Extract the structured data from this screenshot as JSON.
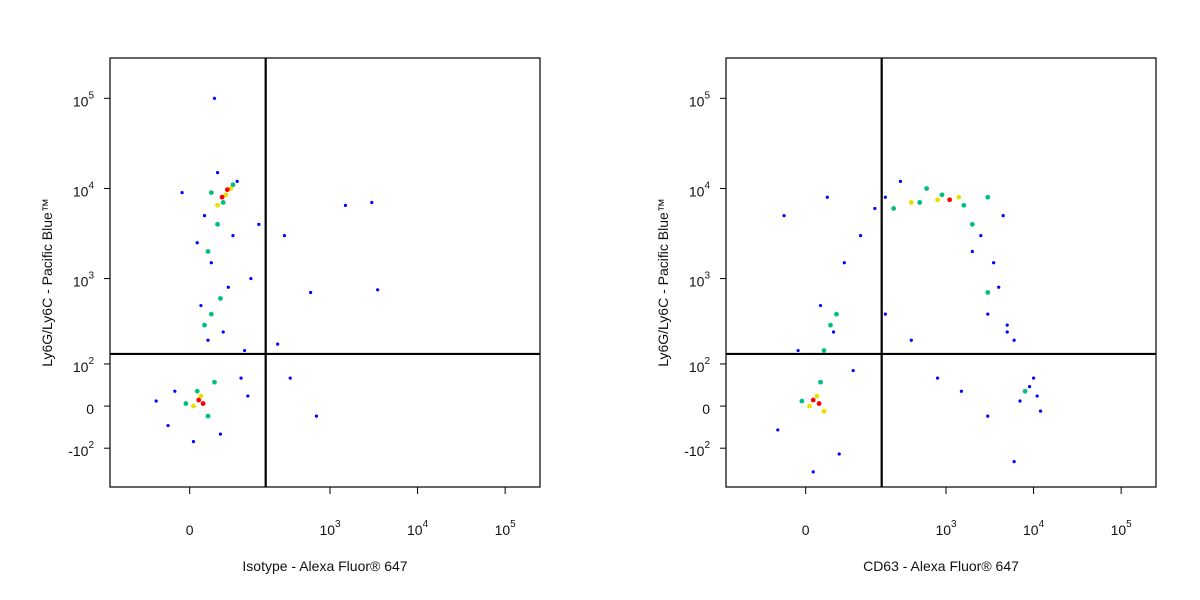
{
  "chart_data": [
    {
      "type": "scatter",
      "x_label": "Isotype - Alexa Fluor® 647",
      "y_label": "Ly6G/Ly6C - Pacific Blue™",
      "xlim": [
        -200,
        250000
      ],
      "ylim": [
        -300,
        280000
      ],
      "scale": "biexponential",
      "xticks": [
        0,
        {
          "value": 1000,
          "label": "10^3"
        },
        {
          "value": 10000,
          "label": "10^4"
        },
        {
          "value": 100000,
          "label": "10^5"
        }
      ],
      "yticks": [
        {
          "value": -100,
          "label": "-10^2"
        },
        0,
        {
          "value": 100,
          "label": "10^2"
        },
        {
          "value": 1000,
          "label": "10^3"
        },
        {
          "value": 10000,
          "label": "10^4"
        },
        {
          "value": 100000,
          "label": "10^5"
        }
      ],
      "gates": {
        "x": 181,
        "y": 136
      },
      "series": [
        {
          "color": "#0000ff",
          "x": [
            40,
            80,
            20,
            70,
            30,
            60,
            15,
            50,
            25,
            -20,
            -30,
            45,
            5,
            90,
            110,
            -50,
            35,
            300,
            600,
            250,
            1500,
            3000,
            3500,
            350,
            700,
            150,
            120,
            10,
            -10,
            100
          ],
          "values": [
            15000,
            12000,
            5000,
            3000,
            1500,
            800,
            500,
            250,
            200,
            30,
            -40,
            -60,
            -80,
            60,
            20,
            10,
            100000,
            3000,
            700,
            180,
            6500,
            7000,
            750,
            60,
            -20,
            4000,
            1000,
            2500,
            9000,
            150
          ]
        },
        {
          "color": "#00c080",
          "x": [
            50,
            30,
            70,
            40,
            25,
            45,
            30,
            20,
            10,
            25,
            -5,
            35
          ],
          "values": [
            7000,
            9000,
            11000,
            4000,
            2000,
            600,
            400,
            300,
            30,
            -20,
            5,
            50
          ]
        },
        {
          "color": "#e8e000",
          "x": [
            55,
            40,
            65,
            15,
            5
          ],
          "values": [
            8500,
            6500,
            10000,
            20,
            0
          ]
        },
        {
          "color": "#ff0000",
          "x": [
            58,
            48,
            12,
            18
          ],
          "values": [
            9700,
            8000,
            12,
            5
          ]
        }
      ]
    },
    {
      "type": "scatter",
      "x_label": "CD63 - Alexa Fluor® 647",
      "y_label": "Ly6G/Ly6C - Pacific Blue™",
      "xlim": [
        -200,
        250000
      ],
      "ylim": [
        -300,
        280000
      ],
      "scale": "biexponential",
      "xticks": [
        0,
        {
          "value": 1000,
          "label": "10^3"
        },
        {
          "value": 10000,
          "label": "10^4"
        },
        {
          "value": 100000,
          "label": "10^5"
        }
      ],
      "yticks": [
        {
          "value": -100,
          "label": "-10^2"
        },
        0,
        {
          "value": 100,
          "label": "10^2"
        },
        {
          "value": 1000,
          "label": "10^3"
        },
        {
          "value": 10000,
          "label": "10^4"
        },
        {
          "value": 100000,
          "label": "10^5"
        }
      ],
      "gates": {
        "x": 181,
        "y": 136
      },
      "series": [
        {
          "color": "#0000ff",
          "x": [
            -30,
            30,
            150,
            100,
            60,
            20,
            40,
            -10,
            80,
            -40,
            50,
            10,
            200,
            400,
            800,
            3000,
            6000,
            1500,
            2500,
            3500,
            4000,
            3000,
            5000,
            2000,
            6000,
            9000,
            11000,
            7000,
            10000,
            4500,
            300,
            200,
            5000,
            12000
          ],
          "values": [
            5000,
            8000,
            6000,
            3000,
            1500,
            500,
            250,
            150,
            80,
            -50,
            -120,
            -200,
            400,
            200,
            60,
            -20,
            -150,
            30,
            3000,
            1500,
            800,
            400,
            250,
            2000,
            200,
            40,
            20,
            10,
            60,
            5000,
            12000,
            8000,
            300,
            -10
          ]
        },
        {
          "color": "#00c080",
          "x": [
            250,
            500,
            900,
            1600,
            3000,
            600,
            35,
            25,
            45,
            20,
            -5,
            2000,
            8000,
            3000
          ],
          "values": [
            6000,
            7000,
            8500,
            6500,
            8000,
            10000,
            300,
            150,
            400,
            50,
            10,
            4000,
            30,
            700
          ]
        },
        {
          "color": "#e8e000",
          "x": [
            800,
            1400,
            400,
            15,
            5,
            25
          ],
          "values": [
            7500,
            8000,
            7000,
            20,
            0,
            -10
          ]
        },
        {
          "color": "#ff0000",
          "x": [
            1100,
            10,
            18
          ],
          "values": [
            7500,
            12,
            5
          ]
        }
      ]
    }
  ]
}
